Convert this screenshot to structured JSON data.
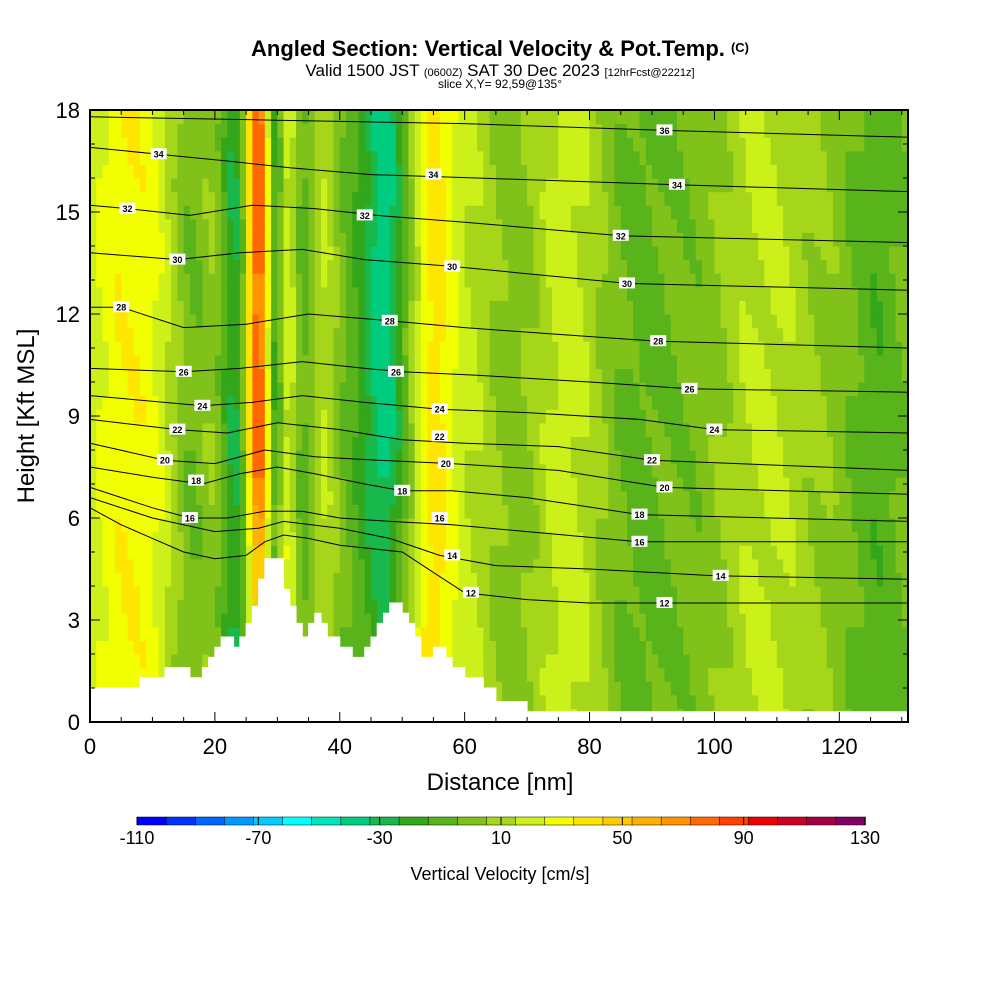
{
  "header": {
    "title": "Angled Section: Vertical Velocity & Pot.Temp.",
    "title_mark": "(C)",
    "valid_prefix": "Valid 1500 JST",
    "valid_utc": "(0600Z)",
    "valid_date": "SAT 30 Dec 2023",
    "valid_fcst": "[12hrFcst@2221z]",
    "slice": "slice X,Y= 92,59@135°"
  },
  "chart_data": {
    "type": "heatmap",
    "xlabel": "Distance [nm]",
    "ylabel": "Height [Kft MSL]",
    "xlim": [
      0,
      131
    ],
    "ylim": [
      0,
      18
    ],
    "x_ticks": [
      "0",
      "20",
      "40",
      "60",
      "80",
      "100",
      "120"
    ],
    "y_ticks": [
      "0",
      "3",
      "6",
      "9",
      "12",
      "15",
      "18"
    ],
    "colorbar": {
      "label": "Vertical Velocity [cm/s]",
      "min": -110,
      "max": 130,
      "step": 10,
      "tick_labels": [
        "-110",
        "-70",
        "-30",
        "10",
        "50",
        "90",
        "130"
      ],
      "colors": [
        "#0000ff",
        "#0033ff",
        "#0066ff",
        "#0099ff",
        "#00ccff",
        "#00ffff",
        "#00e6b8",
        "#00cc80",
        "#19b84d",
        "#33a61a",
        "#59b31a",
        "#80c21a",
        "#a6d61a",
        "#ccf01a",
        "#f2ff00",
        "#ffe600",
        "#ffcc00",
        "#ffb000",
        "#ff9400",
        "#ff6a00",
        "#ff4000",
        "#ee0000",
        "#cc0022",
        "#a30044",
        "#800066"
      ]
    },
    "terrain_kft": [
      [
        0,
        1
      ],
      [
        8,
        1
      ],
      [
        8,
        1.3
      ],
      [
        12,
        1.3
      ],
      [
        12,
        1.6
      ],
      [
        16,
        1.6
      ],
      [
        16,
        1.3
      ],
      [
        18,
        1.3
      ],
      [
        18,
        1.6
      ],
      [
        19,
        1.6
      ],
      [
        19,
        1.9
      ],
      [
        20,
        1.9
      ],
      [
        20,
        2.2
      ],
      [
        21,
        2.2
      ],
      [
        21,
        2.5
      ],
      [
        23,
        2.5
      ],
      [
        23,
        2.2
      ],
      [
        24,
        2.2
      ],
      [
        24,
        2.5
      ],
      [
        25,
        2.5
      ],
      [
        25,
        2.9
      ],
      [
        26,
        2.9
      ],
      [
        26,
        3.4
      ],
      [
        27,
        3.4
      ],
      [
        27,
        4.2
      ],
      [
        28,
        4.2
      ],
      [
        28,
        4.8
      ],
      [
        31,
        4.8
      ],
      [
        31,
        3.9
      ],
      [
        32,
        3.9
      ],
      [
        32,
        3.4
      ],
      [
        33,
        3.4
      ],
      [
        33,
        2.9
      ],
      [
        34,
        2.9
      ],
      [
        34,
        2.5
      ],
      [
        35,
        2.5
      ],
      [
        35,
        2.9
      ],
      [
        36,
        2.9
      ],
      [
        36,
        3.2
      ],
      [
        37,
        3.2
      ],
      [
        37,
        2.9
      ],
      [
        38,
        2.9
      ],
      [
        38,
        2.5
      ],
      [
        40,
        2.5
      ],
      [
        40,
        2.2
      ],
      [
        42,
        2.2
      ],
      [
        42,
        1.9
      ],
      [
        44,
        1.9
      ],
      [
        44,
        2.2
      ],
      [
        45,
        2.2
      ],
      [
        45,
        2.5
      ],
      [
        46,
        2.5
      ],
      [
        46,
        2.9
      ],
      [
        47,
        2.9
      ],
      [
        47,
        3.2
      ],
      [
        48,
        3.2
      ],
      [
        48,
        3.5
      ],
      [
        50,
        3.5
      ],
      [
        50,
        3.2
      ],
      [
        51,
        3.2
      ],
      [
        51,
        2.9
      ],
      [
        52,
        2.9
      ],
      [
        52,
        2.5
      ],
      [
        53,
        2.5
      ],
      [
        53,
        1.9
      ],
      [
        55,
        1.9
      ],
      [
        55,
        2.2
      ],
      [
        57,
        2.2
      ],
      [
        57,
        1.9
      ],
      [
        58,
        1.9
      ],
      [
        58,
        1.6
      ],
      [
        60,
        1.6
      ],
      [
        60,
        1.3
      ],
      [
        63,
        1.3
      ],
      [
        63,
        1.0
      ],
      [
        65,
        1.0
      ],
      [
        65,
        0.6
      ],
      [
        70,
        0.6
      ],
      [
        70,
        0.3
      ],
      [
        131,
        0.3
      ]
    ],
    "velocity_bands": [
      {
        "x": 3,
        "w": 5,
        "v": 20
      },
      {
        "x": 10,
        "w": 6,
        "v": 25
      },
      {
        "x": 17,
        "w": 5,
        "v": -20
      },
      {
        "x": 20,
        "w": 3,
        "v": 20
      },
      {
        "x": 23.5,
        "w": 3,
        "v": -35
      },
      {
        "x": 27,
        "w": 2.2,
        "v": 95
      },
      {
        "x": 29.5,
        "w": 1.6,
        "v": -55
      },
      {
        "x": 31.5,
        "w": 2.2,
        "v": 40
      },
      {
        "x": 34,
        "w": 3,
        "v": -30
      },
      {
        "x": 37,
        "w": 3,
        "v": 25
      },
      {
        "x": 40,
        "w": 3,
        "v": -10
      },
      {
        "x": 47,
        "w": 4,
        "v": -45
      },
      {
        "x": 51,
        "w": 3,
        "v": 5
      },
      {
        "x": 55,
        "w": 3,
        "v": 30
      },
      {
        "x": 60,
        "w": 6,
        "v": 15
      },
      {
        "x": 68,
        "w": 6,
        "v": -8
      },
      {
        "x": 76,
        "w": 6,
        "v": 18
      },
      {
        "x": 88,
        "w": 6,
        "v": -12
      },
      {
        "x": 98,
        "w": 5,
        "v": -5
      },
      {
        "x": 108,
        "w": 7,
        "v": 14
      },
      {
        "x": 126,
        "w": 5,
        "v": -15
      }
    ],
    "theta_contours": [
      {
        "level": 12,
        "label": "12",
        "pts": [
          [
            0,
            6.3
          ],
          [
            5,
            5.8
          ],
          [
            10,
            5.4
          ],
          [
            15,
            5.0
          ],
          [
            20,
            4.8
          ],
          [
            25,
            4.9
          ],
          [
            28,
            5.3
          ],
          [
            31,
            5.5
          ],
          [
            35,
            5.4
          ],
          [
            40,
            5.2
          ],
          [
            45,
            5.1
          ],
          [
            50,
            5.0
          ],
          [
            55,
            4.4
          ],
          [
            60,
            3.8
          ],
          [
            70,
            3.6
          ],
          [
            80,
            3.5
          ],
          [
            100,
            3.5
          ],
          [
            131,
            3.5
          ]
        ],
        "labels": [
          [
            61,
            3.8
          ],
          [
            92,
            3.5
          ]
        ]
      },
      {
        "level": 14,
        "label": "14",
        "pts": [
          [
            0,
            6.6
          ],
          [
            10,
            6.0
          ],
          [
            20,
            5.6
          ],
          [
            27,
            5.7
          ],
          [
            31,
            5.9
          ],
          [
            40,
            5.7
          ],
          [
            48,
            5.4
          ],
          [
            56,
            4.9
          ],
          [
            65,
            4.6
          ],
          [
            80,
            4.5
          ],
          [
            100,
            4.3
          ],
          [
            131,
            4.2
          ]
        ],
        "labels": [
          [
            58,
            4.9
          ],
          [
            101,
            4.3
          ]
        ]
      },
      {
        "level": 16,
        "label": "16",
        "pts": [
          [
            0,
            6.9
          ],
          [
            10,
            6.3
          ],
          [
            16,
            6.0
          ],
          [
            22,
            6.0
          ],
          [
            28,
            6.2
          ],
          [
            34,
            6.2
          ],
          [
            40,
            6.0
          ],
          [
            48,
            5.9
          ],
          [
            58,
            5.8
          ],
          [
            70,
            5.6
          ],
          [
            88,
            5.3
          ],
          [
            131,
            5.3
          ]
        ],
        "labels": [
          [
            16,
            6.0
          ],
          [
            56,
            6.0
          ],
          [
            88,
            5.3
          ]
        ]
      },
      {
        "level": 18,
        "label": "18",
        "pts": [
          [
            0,
            7.5
          ],
          [
            10,
            7.2
          ],
          [
            18,
            7.0
          ],
          [
            24,
            7.3
          ],
          [
            30,
            7.5
          ],
          [
            36,
            7.3
          ],
          [
            44,
            7.0
          ],
          [
            50,
            6.8
          ],
          [
            58,
            6.8
          ],
          [
            70,
            6.6
          ],
          [
            88,
            6.1
          ],
          [
            131,
            5.9
          ]
        ],
        "labels": [
          [
            17,
            7.1
          ],
          [
            50,
            6.8
          ],
          [
            88,
            6.1
          ]
        ]
      },
      {
        "level": 20,
        "label": "20",
        "pts": [
          [
            0,
            8.2
          ],
          [
            12,
            7.7
          ],
          [
            20,
            7.6
          ],
          [
            28,
            8.0
          ],
          [
            36,
            7.8
          ],
          [
            46,
            7.7
          ],
          [
            58,
            7.6
          ],
          [
            75,
            7.4
          ],
          [
            92,
            6.9
          ],
          [
            131,
            6.7
          ]
        ],
        "labels": [
          [
            12,
            7.7
          ],
          [
            57,
            7.6
          ],
          [
            92,
            6.9
          ]
        ]
      },
      {
        "level": 22,
        "label": "22",
        "pts": [
          [
            0,
            8.9
          ],
          [
            14,
            8.6
          ],
          [
            22,
            8.5
          ],
          [
            30,
            8.8
          ],
          [
            40,
            8.6
          ],
          [
            50,
            8.3
          ],
          [
            60,
            8.2
          ],
          [
            75,
            8.1
          ],
          [
            90,
            7.7
          ],
          [
            131,
            7.4
          ]
        ],
        "labels": [
          [
            14,
            8.6
          ],
          [
            56,
            8.4
          ],
          [
            90,
            7.7
          ]
        ]
      },
      {
        "level": 24,
        "label": "24",
        "pts": [
          [
            0,
            9.6
          ],
          [
            18,
            9.3
          ],
          [
            26,
            9.4
          ],
          [
            34,
            9.6
          ],
          [
            44,
            9.4
          ],
          [
            56,
            9.2
          ],
          [
            70,
            9.1
          ],
          [
            88,
            8.9
          ],
          [
            100,
            8.6
          ],
          [
            131,
            8.5
          ]
        ],
        "labels": [
          [
            18,
            9.3
          ],
          [
            56,
            9.2
          ],
          [
            100,
            8.6
          ]
        ]
      },
      {
        "level": 26,
        "label": "26",
        "pts": [
          [
            0,
            10.4
          ],
          [
            15,
            10.3
          ],
          [
            24,
            10.4
          ],
          [
            34,
            10.6
          ],
          [
            44,
            10.4
          ],
          [
            50,
            10.3
          ],
          [
            62,
            10.2
          ],
          [
            80,
            10.0
          ],
          [
            96,
            9.8
          ],
          [
            131,
            9.7
          ]
        ],
        "labels": [
          [
            15,
            10.3
          ],
          [
            49,
            10.3
          ],
          [
            96,
            9.8
          ]
        ]
      },
      {
        "level": 28,
        "label": "28",
        "pts": [
          [
            0,
            12.2
          ],
          [
            5,
            12.2
          ],
          [
            15,
            11.6
          ],
          [
            25,
            11.7
          ],
          [
            35,
            12.0
          ],
          [
            48,
            11.8
          ],
          [
            60,
            11.6
          ],
          [
            75,
            11.4
          ],
          [
            91,
            11.2
          ],
          [
            131,
            11.0
          ]
        ],
        "labels": [
          [
            5,
            12.2
          ],
          [
            48,
            11.8
          ],
          [
            91,
            11.2
          ]
        ]
      },
      {
        "level": 30,
        "label": "30",
        "pts": [
          [
            0,
            13.8
          ],
          [
            14,
            13.6
          ],
          [
            24,
            13.8
          ],
          [
            34,
            13.9
          ],
          [
            44,
            13.6
          ],
          [
            58,
            13.4
          ],
          [
            86,
            12.9
          ],
          [
            131,
            12.7
          ]
        ],
        "labels": [
          [
            14,
            13.6
          ],
          [
            58,
            13.4
          ],
          [
            86,
            12.9
          ]
        ]
      },
      {
        "level": 32,
        "label": "32",
        "pts": [
          [
            0,
            15.2
          ],
          [
            6,
            15.1
          ],
          [
            16,
            14.9
          ],
          [
            26,
            15.2
          ],
          [
            36,
            15.1
          ],
          [
            46,
            14.9
          ],
          [
            60,
            14.7
          ],
          [
            85,
            14.3
          ],
          [
            131,
            14.1
          ]
        ],
        "labels": [
          [
            6,
            15.1
          ],
          [
            44,
            14.9
          ],
          [
            85,
            14.3
          ]
        ]
      },
      {
        "level": 34,
        "label": "34",
        "pts": [
          [
            0,
            16.9
          ],
          [
            11,
            16.7
          ],
          [
            22,
            16.5
          ],
          [
            32,
            16.3
          ],
          [
            45,
            16.1
          ],
          [
            62,
            16.0
          ],
          [
            94,
            15.8
          ],
          [
            131,
            15.6
          ]
        ],
        "labels": [
          [
            11,
            16.7
          ],
          [
            55,
            16.1
          ],
          [
            94,
            15.8
          ]
        ]
      },
      {
        "level": 36,
        "label": "36",
        "pts": [
          [
            0,
            17.8
          ],
          [
            30,
            17.7
          ],
          [
            60,
            17.6
          ],
          [
            92,
            17.4
          ],
          [
            131,
            17.2
          ]
        ],
        "labels": [
          [
            92,
            17.4
          ]
        ]
      }
    ]
  }
}
